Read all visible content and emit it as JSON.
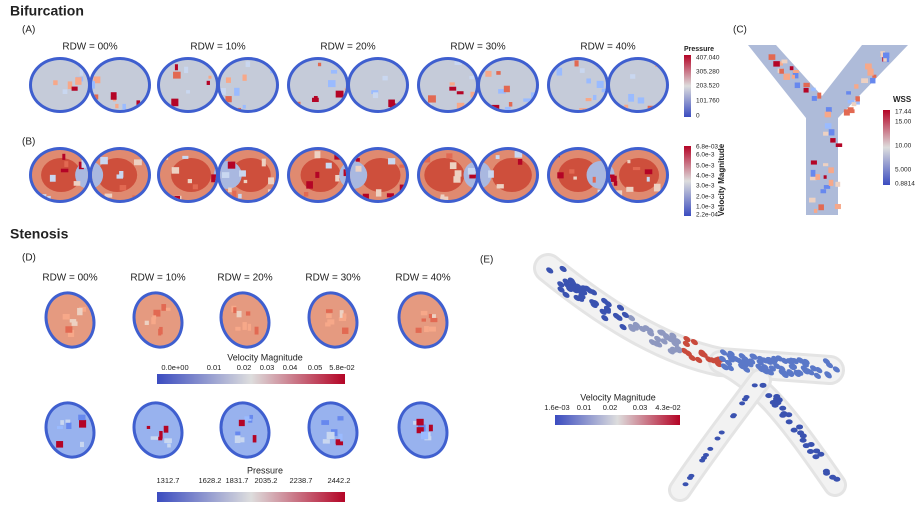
{
  "bifurcation": {
    "title": "Bifurcation",
    "panel_a": "(A)",
    "panel_b": "(B)",
    "panel_c": "(C)",
    "rdw_labels": [
      "RDW = 00%",
      "RDW = 10%",
      "RDW = 20%",
      "RDW = 30%",
      "RDW = 40%"
    ],
    "pressure_bar": {
      "title": "Pressure",
      "ticks": [
        "407.040",
        "305.280",
        "203.520",
        "101.760",
        "0"
      ]
    },
    "velocity_bar": {
      "title": "Velocity Magnitude",
      "ticks": [
        "6.8e-03",
        "6.0e-3",
        "5.0e-3",
        "4.0e-3",
        "3.0e-3",
        "2.0e-3",
        "1.0e-3",
        "2.2e-04"
      ]
    },
    "wss_bar": {
      "title": "WSS",
      "ticks": [
        "17.44",
        "15.00",
        "10.00",
        "5.000",
        "0.8814"
      ]
    }
  },
  "stenosis": {
    "title": "Stenosis",
    "panel_d": "(D)",
    "panel_e": "(E)",
    "rdw_labels": [
      "RDW = 00%",
      "RDW = 10%",
      "RDW = 20%",
      "RDW = 30%",
      "RDW = 40%"
    ],
    "velocity_bar": {
      "title": "Velocity Magnitude",
      "ticks": [
        "0.0e+00",
        "0.01",
        "0.02",
        "0.03",
        "0.04",
        "0.05",
        "5.8e-02"
      ]
    },
    "pressure_bar": {
      "title": "Pressure",
      "ticks": [
        "1312.7",
        "1628.2",
        "1831.7",
        "2035.2",
        "2238.7",
        "2442.2"
      ]
    },
    "e_velocity_bar": {
      "title": "Velocity Magnitude",
      "ticks": [
        "1.6e-03",
        "0.01",
        "0.02",
        "0.03",
        "4.3e-02"
      ]
    }
  }
}
